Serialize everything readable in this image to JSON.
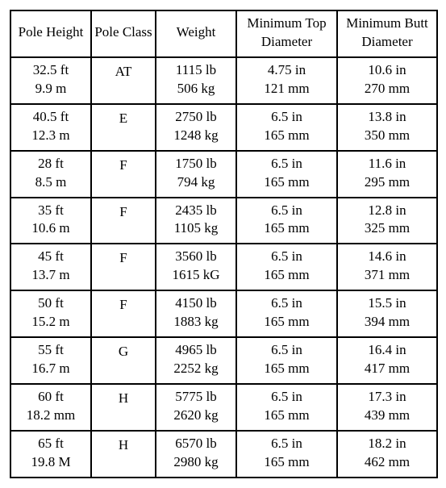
{
  "table": {
    "columns": [
      "Pole Height",
      "Pole Class",
      "Weight",
      "Minimum Top Diameter",
      "Minimum Butt Diameter"
    ],
    "rows": [
      {
        "height_imp": "32.5 ft",
        "height_met": "9.9 m",
        "class": "AT",
        "weight_imp": "1115 lb",
        "weight_met": "506 kg",
        "top_imp": "4.75 in",
        "top_met": "121 mm",
        "butt_imp": "10.6 in",
        "butt_met": "270 mm"
      },
      {
        "height_imp": "40.5 ft",
        "height_met": "12.3 m",
        "class": "E",
        "weight_imp": "2750 lb",
        "weight_met": "1248 kg",
        "top_imp": "6.5 in",
        "top_met": "165 mm",
        "butt_imp": "13.8 in",
        "butt_met": "350 mm"
      },
      {
        "height_imp": "28 ft",
        "height_met": "8.5 m",
        "class": "F",
        "weight_imp": "1750 lb",
        "weight_met": "794 kg",
        "top_imp": "6.5 in",
        "top_met": "165 mm",
        "butt_imp": "11.6 in",
        "butt_met": "295 mm"
      },
      {
        "height_imp": "35 ft",
        "height_met": "10.6 m",
        "class": "F",
        "weight_imp": "2435 lb",
        "weight_met": "1105 kg",
        "top_imp": "6.5 in",
        "top_met": "165 mm",
        "butt_imp": "12.8 in",
        "butt_met": "325 mm"
      },
      {
        "height_imp": "45 ft",
        "height_met": "13.7 m",
        "class": "F",
        "weight_imp": "3560 lb",
        "weight_met": "1615 kG",
        "top_imp": "6.5 in",
        "top_met": "165 mm",
        "butt_imp": "14.6 in",
        "butt_met": "371 mm"
      },
      {
        "height_imp": "50 ft",
        "height_met": "15.2 m",
        "class": "F",
        "weight_imp": "4150 lb",
        "weight_met": "1883 kg",
        "top_imp": "6.5 in",
        "top_met": "165 mm",
        "butt_imp": "15.5 in",
        "butt_met": "394 mm"
      },
      {
        "height_imp": "55  ft",
        "height_met": "16.7 m",
        "class": "G",
        "weight_imp": "4965 lb",
        "weight_met": "2252 kg",
        "top_imp": "6.5 in",
        "top_met": "165 mm",
        "butt_imp": "16.4 in",
        "butt_met": "417 mm"
      },
      {
        "height_imp": "60 ft",
        "height_met": "18.2 mm",
        "class": "H",
        "weight_imp": "5775 lb",
        "weight_met": "2620 kg",
        "top_imp": "6.5 in",
        "top_met": "165 mm",
        "butt_imp": "17.3 in",
        "butt_met": "439 mm"
      },
      {
        "height_imp": "65 ft",
        "height_met": "19.8 M",
        "class": "H",
        "weight_imp": "6570 lb",
        "weight_met": "2980 kg",
        "top_imp": "6.5 in",
        "top_met": "165 mm",
        "butt_imp": "18.2 in",
        "butt_met": "462 mm"
      }
    ]
  }
}
